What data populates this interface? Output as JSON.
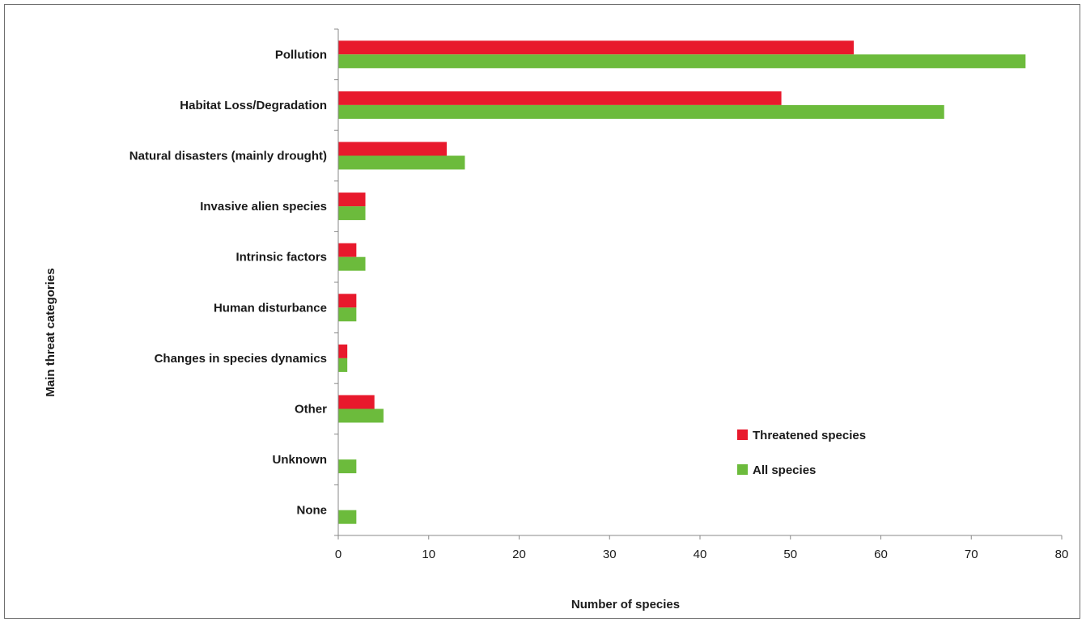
{
  "chart_data": {
    "type": "bar",
    "orientation": "horizontal",
    "title": "",
    "xlabel": "Number of species",
    "ylabel": "Main threat categories",
    "xlim": [
      0,
      80
    ],
    "xticks": [
      0,
      10,
      20,
      30,
      40,
      50,
      60,
      70,
      80
    ],
    "categories": [
      "Pollution",
      "Habitat Loss/Degradation",
      "Natural disasters (mainly drought)",
      "Invasive alien species",
      "Intrinsic factors",
      "Human disturbance",
      "Changes in species dynamics",
      "Other",
      "Unknown",
      "None"
    ],
    "series": [
      {
        "name": "Threatened species",
        "color": "#e8192c",
        "values": [
          57,
          49,
          12,
          3,
          2,
          2,
          1,
          4,
          0,
          0
        ]
      },
      {
        "name": "All species",
        "color": "#6cbb3c",
        "values": [
          76,
          67,
          14,
          3,
          3,
          2,
          1,
          5,
          2,
          2
        ]
      }
    ],
    "grid": false,
    "legend_position": "lower-right"
  }
}
